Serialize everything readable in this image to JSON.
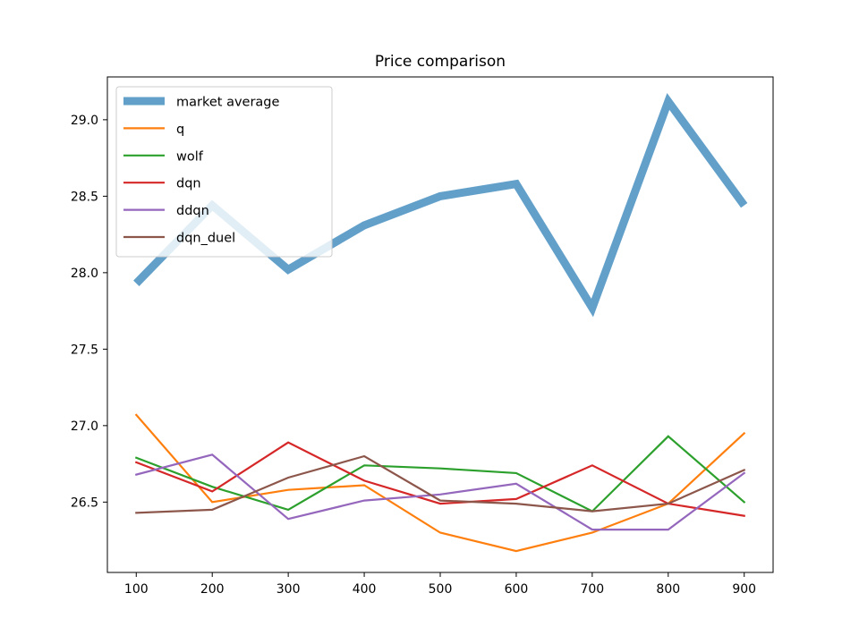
{
  "chart_data": {
    "type": "line",
    "title": "Price comparison",
    "xlabel": "",
    "ylabel": "",
    "x": [
      100,
      200,
      300,
      400,
      500,
      600,
      700,
      800,
      900
    ],
    "xlim": [
      62,
      938
    ],
    "ylim": [
      26.04,
      29.28
    ],
    "xticks": [
      "100",
      "200",
      "300",
      "400",
      "500",
      "600",
      "700",
      "800",
      "900"
    ],
    "xtick_values": [
      100,
      200,
      300,
      400,
      500,
      600,
      700,
      800,
      900
    ],
    "yticks": [
      "26.5",
      "27.0",
      "27.5",
      "28.0",
      "28.5",
      "29.0"
    ],
    "ytick_values": [
      26.5,
      27.0,
      27.5,
      28.0,
      28.5,
      29.0
    ],
    "grid": false,
    "legend": "top-left",
    "series": [
      {
        "name": "market average",
        "color": "#1f77b4",
        "opacity": 0.7,
        "width": "thick",
        "values": [
          27.93,
          28.44,
          28.02,
          28.31,
          28.5,
          28.58,
          27.77,
          29.12,
          28.44
        ]
      },
      {
        "name": "q",
        "color": "#ff7f0e",
        "values": [
          27.07,
          26.5,
          26.58,
          26.61,
          26.3,
          26.18,
          26.3,
          26.49,
          26.95
        ]
      },
      {
        "name": "wolf",
        "color": "#2ca02c",
        "values": [
          26.79,
          26.6,
          26.45,
          26.74,
          26.72,
          26.69,
          26.44,
          26.93,
          26.5
        ]
      },
      {
        "name": "dqn",
        "color": "#d62728",
        "values": [
          26.76,
          26.57,
          26.89,
          26.64,
          26.49,
          26.52,
          26.74,
          26.49,
          26.41
        ]
      },
      {
        "name": "ddqn",
        "color": "#9467bd",
        "values": [
          26.68,
          26.81,
          26.39,
          26.51,
          26.55,
          26.62,
          26.32,
          26.32,
          26.69
        ]
      },
      {
        "name": "dqn_duel",
        "color": "#8c564b",
        "values": [
          26.43,
          26.45,
          26.66,
          26.8,
          26.51,
          26.49,
          26.44,
          26.49,
          26.71
        ]
      }
    ]
  }
}
